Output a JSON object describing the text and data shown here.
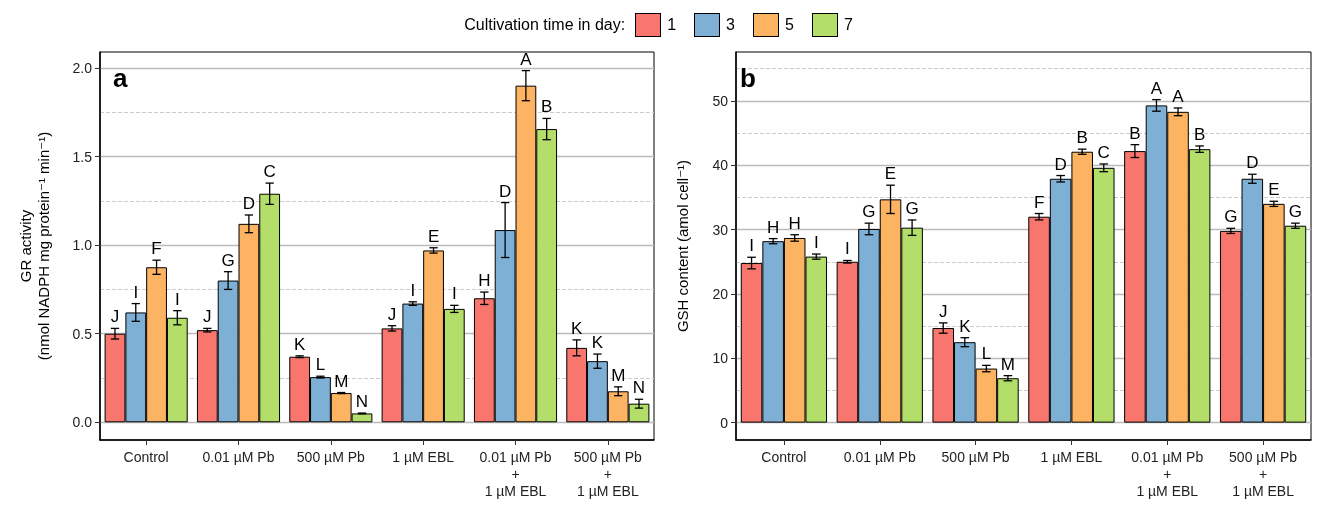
{
  "chart_data": [
    {
      "type": "bar",
      "title": "a",
      "ylabel": "GR activity\n(nmol NADPH mg protein⁻¹ min⁻¹)",
      "legend_title": "Cultivation time in day:",
      "legend": "top",
      "grid": "y",
      "categories": [
        "Control",
        "0.01 µM Pb",
        "500 µM Pb",
        "1 µM EBL",
        "0.01 µM Pb\n+\n1 µM EBL",
        "500 µM Pb\n+\n1 µM EBL"
      ],
      "ylim": [
        -0.1,
        2.09
      ],
      "yticks": [
        {
          "value": 0,
          "label": "0.0"
        },
        {
          "value": 0.5,
          "label": "0.5"
        },
        {
          "value": 1,
          "label": "1.0"
        },
        {
          "value": 1.5,
          "label": "1.5"
        },
        {
          "value": 2,
          "label": "2.0"
        }
      ],
      "series": [
        {
          "name": "1",
          "color": "#f8766d",
          "values": [
            0.5,
            0.52,
            0.37,
            0.53,
            0.7,
            0.42
          ],
          "errors": [
            0.03,
            0.01,
            0.005,
            0.015,
            0.035,
            0.045
          ],
          "value_labels": [
            "J",
            "J",
            "K",
            "J",
            "H",
            "K"
          ]
        },
        {
          "name": "3",
          "color": "#7eb0d5",
          "values": [
            0.62,
            0.8,
            0.255,
            0.67,
            1.085,
            0.345
          ],
          "errors": [
            0.05,
            0.05,
            0.005,
            0.01,
            0.155,
            0.04
          ],
          "value_labels": [
            "I",
            "G",
            "L",
            "I",
            "D",
            "K"
          ]
        },
        {
          "name": "5",
          "color": "#fdb462",
          "values": [
            0.875,
            1.12,
            0.165,
            0.97,
            1.9,
            0.175
          ],
          "errors": [
            0.04,
            0.05,
            0.003,
            0.015,
            0.085,
            0.025
          ],
          "value_labels": [
            "F",
            "D",
            "M",
            "E",
            "A",
            "M"
          ]
        },
        {
          "name": "7",
          "color": "#b3de69",
          "values": [
            0.59,
            1.29,
            0.05,
            0.64,
            1.655,
            0.105
          ],
          "errors": [
            0.04,
            0.06,
            0.002,
            0.02,
            0.06,
            0.025
          ],
          "value_labels": [
            "I",
            "C",
            "N",
            "I",
            "B",
            "N"
          ]
        }
      ]
    },
    {
      "type": "bar",
      "title": "b",
      "ylabel": "GSH content (amol cell⁻¹)",
      "grid": "y",
      "categories": [
        "Control",
        "0.01 µM Pb",
        "500 µM Pb",
        "1 µM EBL",
        "0.01 µM Pb\n+\n1 µM EBL",
        "500 µM Pb\n+\n1 µM EBL"
      ],
      "ylim": [
        -2.7,
        57.6
      ],
      "yticks": [
        0,
        10,
        20,
        30,
        40,
        50
      ],
      "series": [
        {
          "name": "1",
          "color": "#f8766d",
          "values": [
            24.8,
            25.0,
            14.7,
            32.0,
            42.2,
            29.8
          ],
          "errors": [
            0.9,
            0.2,
            0.8,
            0.5,
            1.0,
            0.4
          ],
          "value_labels": [
            "I",
            "I",
            "J",
            "F",
            "B",
            "G"
          ]
        },
        {
          "name": "3",
          "color": "#7eb0d5",
          "values": [
            28.2,
            30.1,
            12.5,
            37.9,
            49.3,
            37.9
          ],
          "errors": [
            0.4,
            0.9,
            0.7,
            0.5,
            0.9,
            0.7
          ],
          "value_labels": [
            "H",
            "G",
            "K",
            "D",
            "A",
            "D"
          ]
        },
        {
          "name": "5",
          "color": "#fdb462",
          "values": [
            28.7,
            34.7,
            8.4,
            42.1,
            48.3,
            34.0
          ],
          "errors": [
            0.5,
            2.2,
            0.5,
            0.4,
            0.6,
            0.4
          ],
          "value_labels": [
            "H",
            "E",
            "L",
            "B",
            "A",
            "E"
          ]
        },
        {
          "name": "7",
          "color": "#b3de69",
          "values": [
            25.8,
            30.3,
            6.9,
            39.6,
            42.5,
            30.6
          ],
          "errors": [
            0.4,
            1.2,
            0.4,
            0.6,
            0.5,
            0.4
          ],
          "value_labels": [
            "I",
            "G",
            "M",
            "C",
            "B",
            "G"
          ]
        }
      ]
    }
  ]
}
